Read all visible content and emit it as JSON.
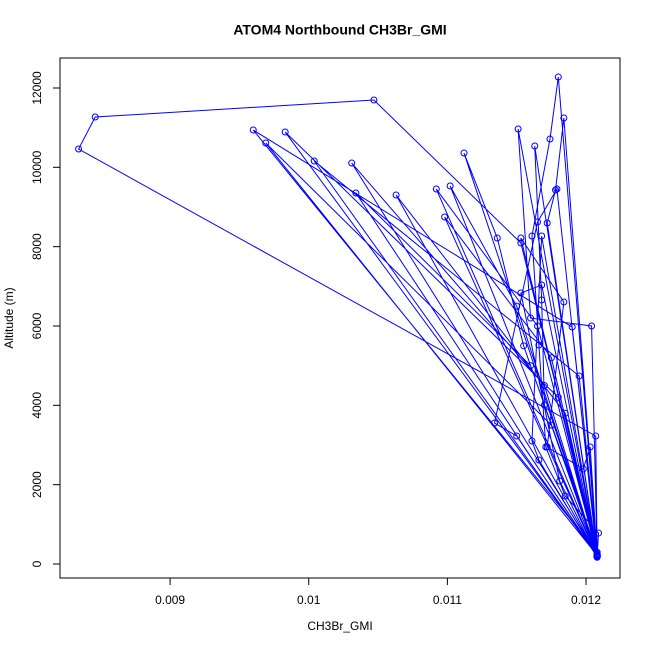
{
  "chart_data": {
    "type": "scatter",
    "line": true,
    "title": "ATOM4 Northbound CH3Br_GMI",
    "x_label": "CH3Br_GMI",
    "y_label": "Altitude (m)",
    "xlim": [
      0.008206,
      0.012245
    ],
    "ylim": [
      -353,
      12756
    ],
    "xticks": [
      0.009,
      0.01,
      0.011,
      0.012
    ],
    "yticks": [
      0,
      2000,
      4000,
      6000,
      8000,
      10000,
      12000
    ],
    "series": [
      {
        "color": "#0000ff",
        "x": [
          0.01208,
          0.01209,
          0.01185,
          0.01171,
          0.01166,
          0.01161,
          0.01174,
          0.0118,
          0.01208,
          0.01153,
          0.01047,
          0.00846,
          0.00834,
          0.01207,
          0.01208,
          0.01163,
          0.01168,
          0.0117,
          0.01208,
          0.0096,
          0.0119,
          0.01208,
          0.00969,
          0.01175,
          0.01208,
          0.00983,
          0.0118,
          0.01208,
          0.01004,
          0.01195,
          0.01208,
          0.01031,
          0.0117,
          0.01208,
          0.01034,
          0.0116,
          0.01208,
          0.01063,
          0.01185,
          0.01208,
          0.01092,
          0.01165,
          0.01208,
          0.01102,
          0.0115,
          0.01208,
          0.01098,
          0.01175,
          0.01208,
          0.01112,
          0.01136,
          0.01155,
          0.01208,
          0.01151,
          0.0116,
          0.01204,
          0.01208,
          0.01184,
          0.01178,
          0.01172,
          0.01208,
          0.01179,
          0.01165,
          0.01134,
          0.0115,
          0.01208,
          0.01168,
          0.01161,
          0.01166,
          0.01208,
          0.01153,
          0.01184,
          0.01172,
          0.01198,
          0.01203,
          0.01208,
          0.01168,
          0.01153,
          0.01181,
          0.01208
        ],
        "values": [
          190,
          780,
          1714,
          2949,
          5520,
          8268,
          10713,
          12276,
          250,
          8092,
          11697,
          11268,
          10461,
          3227,
          200,
          10537,
          6655,
          4008,
          300,
          10940,
          5974,
          220,
          10613,
          3500,
          210,
          10890,
          4200,
          200,
          10159,
          4739,
          230,
          10108,
          4500,
          180,
          9352,
          5000,
          200,
          9302,
          3800,
          210,
          9453,
          6000,
          220,
          9529,
          6500,
          190,
          8747,
          5200,
          200,
          10360,
          8218,
          5500,
          210,
          10966,
          6200,
          6000,
          260,
          11243,
          9428,
          8596,
          200,
          9453,
          8621,
          3554,
          3227,
          200,
          8268,
          3101,
          2622,
          190,
          8218,
          6605,
          2949,
          2395,
          2949,
          200,
          7033,
          6831,
          2092,
          170
        ]
      }
    ]
  }
}
